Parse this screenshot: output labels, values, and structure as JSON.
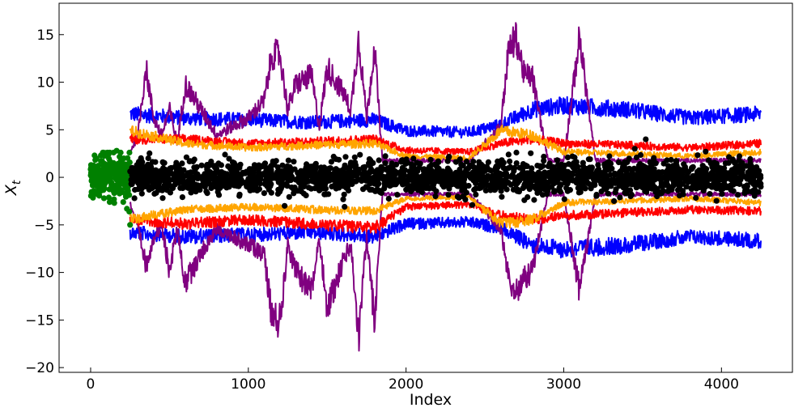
{
  "chart_data": {
    "type": "line",
    "title": "",
    "xlabel": "Index",
    "ylabel": "X",
    "ylabel_subscript": "t",
    "xlim": [
      -200,
      4450
    ],
    "ylim": [
      -20.5,
      18.3
    ],
    "xticks": [
      0,
      1000,
      2000,
      3000,
      4000
    ],
    "xtick_labels": [
      "0",
      "1000",
      "2000",
      "3000",
      "4000"
    ],
    "yticks": [
      -20,
      -15,
      -10,
      -5,
      0,
      5,
      10,
      15
    ],
    "ytick_labels": [
      "−20",
      "−15",
      "−10",
      "−5",
      "0",
      "5",
      "10",
      "15"
    ],
    "grid": false,
    "legend": "none",
    "x_range_observed": [
      0,
      250
    ],
    "x_range_forecast": [
      250,
      4250
    ],
    "series": [
      {
        "kind": "band",
        "color": "#0000ff",
        "x": [
          250,
          600,
          1000,
          1400,
          1800,
          2000,
          2400,
          2600,
          2800,
          3000,
          3400,
          3800,
          4250
        ],
        "upper": [
          7.5,
          7.0,
          6.8,
          6.5,
          6.8,
          5.5,
          5.3,
          6.2,
          8.0,
          8.5,
          8.0,
          7.0,
          7.5
        ],
        "lower": [
          -6.5,
          -7.0,
          -6.8,
          -6.5,
          -7.0,
          -5.5,
          -5.3,
          -6.0,
          -8.0,
          -8.5,
          -8.0,
          -7.0,
          -7.5
        ]
      },
      {
        "kind": "band",
        "color": "#800080",
        "x": [
          250,
          300,
          350,
          400,
          450,
          500,
          550,
          600,
          700,
          800,
          900,
          1000,
          1100,
          1150,
          1200,
          1250,
          1300,
          1400,
          1450,
          1500,
          1600,
          1650,
          1700,
          1750,
          1800,
          1850,
          2000,
          2400,
          2600,
          2650,
          2700,
          2750,
          2800,
          2900,
          3000,
          3100,
          3200,
          3400,
          3600,
          3800,
          4000,
          4250
        ],
        "upper": [
          3.0,
          5.0,
          13.0,
          7.0,
          5.0,
          8.0,
          4.0,
          11.0,
          8.0,
          5.0,
          6.0,
          7.0,
          9.0,
          14.5,
          14.5,
          8.0,
          11.0,
          12.0,
          6.0,
          13.0,
          10.0,
          8.0,
          16.5,
          7.0,
          15.5,
          2.0,
          2.0,
          2.0,
          6.0,
          15.0,
          16.5,
          12.0,
          12.0,
          2.0,
          2.0,
          16.5,
          2.0,
          2.0,
          2.0,
          2.0,
          2.0,
          2.0
        ],
        "lower": [
          -3.0,
          -6.0,
          -10.5,
          -7.0,
          -6.0,
          -11.0,
          -6.0,
          -12.5,
          -9.0,
          -6.0,
          -7.0,
          -8.0,
          -9.0,
          -16.5,
          -17.0,
          -8.0,
          -11.0,
          -13.5,
          -7.0,
          -15.5,
          -10.0,
          -8.0,
          -18.8,
          -7.0,
          -17.0,
          -2.0,
          -2.0,
          -2.0,
          -6.0,
          -12.0,
          -13.5,
          -12.0,
          -11.0,
          -2.0,
          -2.0,
          -13.5,
          -2.0,
          -2.0,
          -2.0,
          -2.0,
          -2.0,
          -2.0
        ]
      },
      {
        "kind": "band",
        "color": "#ff0000",
        "x": [
          250,
          600,
          1000,
          1400,
          1800,
          2000,
          2400,
          2600,
          2800,
          3000,
          3400,
          3800,
          4250
        ],
        "upper": [
          4.5,
          4.5,
          4.0,
          4.2,
          4.5,
          3.2,
          3.0,
          4.0,
          4.5,
          4.0,
          3.8,
          3.5,
          4.0
        ],
        "lower": [
          -5.0,
          -5.5,
          -5.0,
          -5.5,
          -6.0,
          -3.5,
          -3.2,
          -4.5,
          -5.0,
          -4.5,
          -4.2,
          -3.8,
          -4.0
        ]
      },
      {
        "kind": "band",
        "color": "#ffa500",
        "x": [
          250,
          600,
          1000,
          1400,
          1800,
          2000,
          2400,
          2600,
          2800,
          3000,
          3400,
          3800,
          4250
        ],
        "upper": [
          5.5,
          4.0,
          3.5,
          3.8,
          4.0,
          2.5,
          2.3,
          5.5,
          5.0,
          3.0,
          2.8,
          2.5,
          3.0
        ],
        "lower": [
          -5.0,
          -3.8,
          -3.5,
          -3.8,
          -4.0,
          -2.5,
          -2.3,
          -5.5,
          -5.0,
          -3.0,
          -2.8,
          -2.5,
          -3.0
        ]
      },
      {
        "kind": "scatter",
        "color": "#008000",
        "x_range": [
          0,
          250
        ],
        "spread": 1.3,
        "outliers": [
          [
            25,
            2.3
          ],
          [
            65,
            2.3
          ],
          [
            85,
            -2.2
          ],
          [
            150,
            -2.7
          ],
          [
            165,
            2.8
          ],
          [
            210,
            2.0
          ],
          [
            230,
            -3.3
          ],
          [
            245,
            -3.6
          ],
          [
            250,
            -5.0
          ]
        ]
      },
      {
        "kind": "scatter",
        "color": "#000000",
        "x_range": [
          250,
          4250
        ],
        "spread": 0.85,
        "outliers": [
          [
            2650,
            2.4
          ],
          [
            2700,
            2.6
          ],
          [
            2750,
            -2.4
          ],
          [
            3450,
            3.0
          ],
          [
            3520,
            4.0
          ],
          [
            2420,
            -2.9
          ],
          [
            1230,
            -3.0
          ],
          [
            1610,
            -3.1
          ],
          [
            3900,
            2.7
          ]
        ]
      }
    ]
  }
}
